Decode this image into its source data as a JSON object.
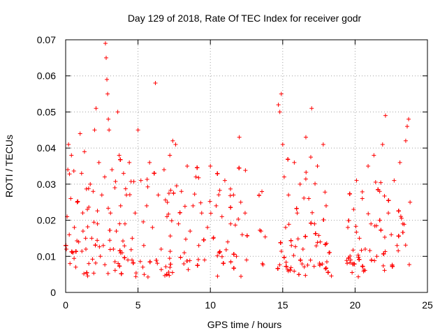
{
  "chart_data": {
    "type": "scatter",
    "title": "Day 129 of 2018, Rate Of TEC Index for receiver godr",
    "xlabel": "GPS time / hours",
    "ylabel": "ROTI / TECUs",
    "xlim": [
      0,
      25
    ],
    "ylim": [
      0,
      0.07
    ],
    "x_ticks": [
      0,
      5,
      10,
      15,
      20,
      25
    ],
    "x_tick_labels": [
      "0",
      "5",
      "10",
      "15",
      "20",
      "25"
    ],
    "y_ticks": [
      0,
      0.01,
      0.02,
      0.03,
      0.04,
      0.05,
      0.06,
      0.07
    ],
    "y_tick_labels": [
      "0",
      "0.01",
      "0.02",
      "0.03",
      "0.04",
      "0.05",
      "0.06",
      "0.07"
    ],
    "grid": true,
    "marker": "+",
    "series_color": "#ff0000",
    "data_gaps_hours": [
      [
        12.7,
        13.3
      ],
      [
        13.8,
        14.6
      ],
      [
        18.4,
        19.4
      ]
    ],
    "series": [
      {
        "name": "ROTI",
        "points": [
          [
            0.05,
            0.012
          ],
          [
            0.1,
            0.021
          ],
          [
            0.15,
            0.034
          ],
          [
            0.2,
            0.041
          ],
          [
            0.25,
            0.016
          ],
          [
            0.3,
            0.008
          ],
          [
            0.35,
            0.026
          ],
          [
            0.4,
            0.038
          ],
          [
            0.5,
            0.011
          ],
          [
            0.6,
            0.018
          ],
          [
            0.7,
            0.007
          ],
          [
            0.8,
            0.025
          ],
          [
            0.9,
            0.014
          ],
          [
            1.0,
            0.044
          ],
          [
            1.1,
            0.033
          ],
          [
            1.2,
            0.017
          ],
          [
            1.3,
            0.039
          ],
          [
            1.4,
            0.012
          ],
          [
            1.5,
            0.023
          ],
          [
            1.6,
            0.008
          ],
          [
            1.7,
            0.03
          ],
          [
            1.8,
            0.015
          ],
          [
            1.9,
            0.028
          ],
          [
            2.0,
            0.045
          ],
          [
            2.1,
            0.051
          ],
          [
            2.2,
            0.019
          ],
          [
            2.3,
            0.036
          ],
          [
            2.4,
            0.01
          ],
          [
            2.5,
            0.027
          ],
          [
            2.6,
            0.013
          ],
          [
            2.7,
            0.032
          ],
          [
            2.75,
            0.069
          ],
          [
            2.8,
            0.065
          ],
          [
            2.85,
            0.059
          ],
          [
            2.9,
            0.055
          ],
          [
            2.95,
            0.048
          ],
          [
            3.0,
            0.045
          ],
          [
            3.1,
            0.022
          ],
          [
            3.2,
            0.034
          ],
          [
            3.3,
            0.012
          ],
          [
            3.4,
            0.029
          ],
          [
            3.5,
            0.017
          ],
          [
            3.6,
            0.05
          ],
          [
            3.7,
            0.038
          ],
          [
            3.8,
            0.024
          ],
          [
            3.9,
            0.011
          ],
          [
            4.0,
            0.033
          ],
          [
            4.1,
            0.019
          ],
          [
            4.2,
            0.027
          ],
          [
            4.3,
            0.009
          ],
          [
            4.4,
            0.036
          ],
          [
            4.6,
            0.015
          ],
          [
            4.8,
            0.022
          ],
          [
            5.0,
            0.045
          ],
          [
            5.2,
            0.031
          ],
          [
            5.4,
            0.013
          ],
          [
            5.6,
            0.024
          ],
          [
            5.8,
            0.036
          ],
          [
            6.0,
            0.018
          ],
          [
            6.2,
            0.058
          ],
          [
            6.4,
            0.027
          ],
          [
            6.6,
            0.012
          ],
          [
            6.8,
            0.034
          ],
          [
            7.0,
            0.021
          ],
          [
            7.2,
            0.038
          ],
          [
            7.4,
            0.042
          ],
          [
            7.6,
            0.041
          ],
          [
            7.8,
            0.019
          ],
          [
            8.0,
            0.028
          ],
          [
            8.2,
            0.011
          ],
          [
            8.4,
            0.035
          ],
          [
            8.6,
            0.017
          ],
          [
            8.8,
            0.024
          ],
          [
            9.0,
            0.032
          ],
          [
            9.2,
            0.013
          ],
          [
            9.4,
            0.022
          ],
          [
            9.6,
            0.009
          ],
          [
            9.8,
            0.018
          ],
          [
            10.0,
            0.035
          ],
          [
            10.2,
            0.015
          ],
          [
            10.4,
            0.024
          ],
          [
            10.6,
            0.011
          ],
          [
            10.8,
            0.021
          ],
          [
            11.0,
            0.031
          ],
          [
            11.2,
            0.014
          ],
          [
            11.4,
            0.019
          ],
          [
            11.6,
            0.027
          ],
          [
            11.8,
            0.01
          ],
          [
            12.0,
            0.043
          ],
          [
            12.1,
            0.025
          ],
          [
            12.2,
            0.016
          ],
          [
            12.4,
            0.022
          ],
          [
            12.5,
            0.009
          ],
          [
            13.5,
            0.017
          ],
          [
            13.6,
            0.008
          ],
          [
            14.7,
            0.052
          ],
          [
            14.8,
            0.05
          ],
          [
            14.9,
            0.055
          ],
          [
            15.0,
            0.041
          ],
          [
            15.1,
            0.032
          ],
          [
            15.2,
            0.018
          ],
          [
            15.4,
            0.027
          ],
          [
            15.6,
            0.013
          ],
          [
            15.8,
            0.036
          ],
          [
            16.0,
            0.022
          ],
          [
            16.2,
            0.03
          ],
          [
            16.4,
            0.012
          ],
          [
            16.6,
            0.043
          ],
          [
            16.8,
            0.026
          ],
          [
            17.0,
            0.051
          ],
          [
            17.2,
            0.019
          ],
          [
            17.4,
            0.035
          ],
          [
            17.6,
            0.014
          ],
          [
            17.8,
            0.041
          ],
          [
            18.0,
            0.024
          ],
          [
            18.2,
            0.011
          ],
          [
            19.5,
            0.018
          ],
          [
            19.7,
            0.009
          ],
          [
            19.9,
            0.023
          ],
          [
            20.1,
            0.031
          ],
          [
            20.3,
            0.015
          ],
          [
            20.5,
            0.026
          ],
          [
            20.7,
            0.012
          ],
          [
            20.9,
            0.035
          ],
          [
            21.1,
            0.019
          ],
          [
            21.3,
            0.038
          ],
          [
            21.5,
            0.01
          ],
          [
            21.7,
            0.028
          ],
          [
            21.9,
            0.041
          ],
          [
            22.1,
            0.049
          ],
          [
            22.3,
            0.022
          ],
          [
            22.5,
            0.016
          ],
          [
            22.7,
            0.031
          ],
          [
            22.9,
            0.013
          ],
          [
            23.1,
            0.036
          ],
          [
            23.3,
            0.019
          ],
          [
            23.5,
            0.042
          ],
          [
            23.6,
            0.046
          ],
          [
            23.7,
            0.048
          ],
          [
            23.8,
            0.025
          ]
        ]
      }
    ]
  }
}
